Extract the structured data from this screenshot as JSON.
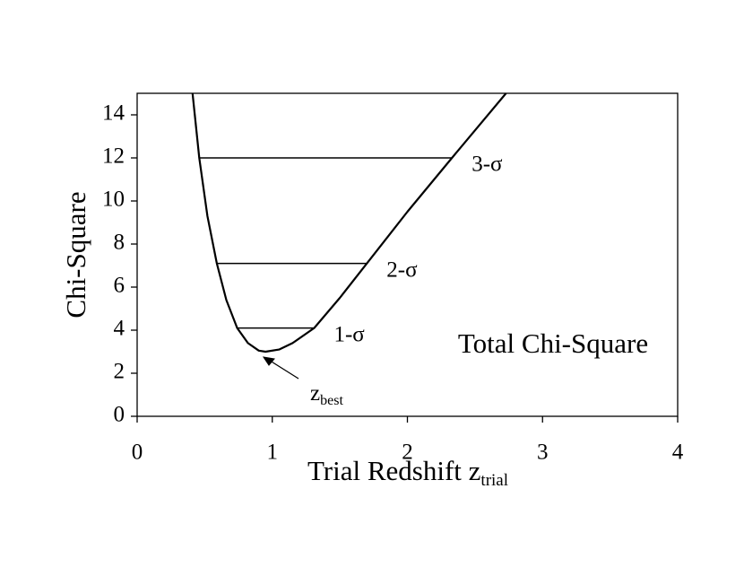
{
  "chart_data": {
    "type": "line",
    "annotation": "Total Chi-Square",
    "xlabel": {
      "text": "Trial Redshift z",
      "sub": "trial"
    },
    "ylabel": "Chi-Square",
    "min_label": {
      "text": "z",
      "sub": "best"
    },
    "x": [
      0.41,
      0.46,
      0.52,
      0.59,
      0.66,
      0.74,
      0.82,
      0.9,
      0.95,
      1.05,
      1.15,
      1.31,
      1.5,
      1.7,
      2.0,
      2.33,
      2.73
    ],
    "values": [
      15,
      12,
      9.3,
      7.1,
      5.4,
      4.1,
      3.4,
      3.05,
      3.0,
      3.1,
      3.4,
      4.1,
      5.5,
      7.1,
      9.5,
      12,
      15
    ],
    "color": "#000000",
    "levels": [
      {
        "label": "1-σ",
        "y": 4.1,
        "x": [
          0.74,
          1.31
        ]
      },
      {
        "label": "2-σ",
        "y": 7.1,
        "x": [
          0.59,
          1.7
        ]
      },
      {
        "label": "3-σ",
        "y": 12,
        "x": [
          0.46,
          2.33
        ]
      }
    ],
    "xlim": [
      0,
      4
    ],
    "xticks": [
      0,
      1,
      2,
      3,
      4
    ],
    "ylim": [
      0,
      15
    ],
    "yticks": [
      0,
      2,
      4,
      6,
      8,
      10,
      12,
      14
    ],
    "grid": false
  }
}
